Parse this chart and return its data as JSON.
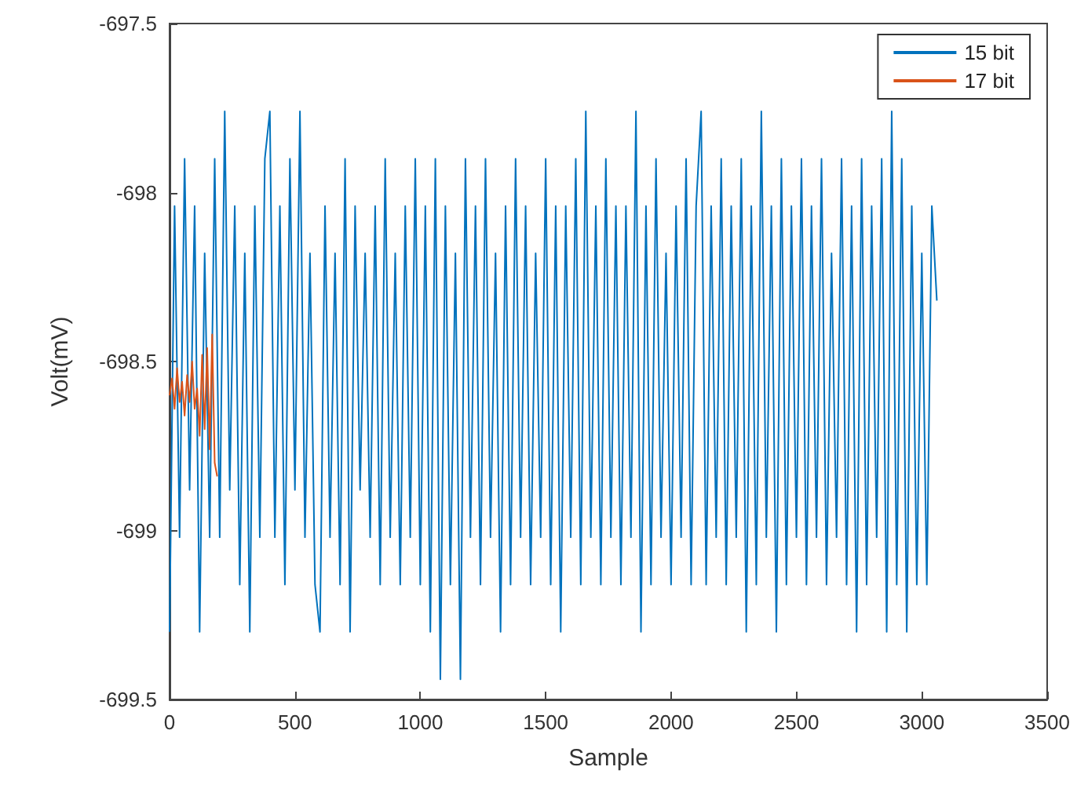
{
  "chart_data": {
    "type": "line",
    "xlabel": "Sample",
    "ylabel": "Volt(mV)",
    "xlim": [
      0,
      3500
    ],
    "xticks": [
      0,
      500,
      1000,
      1500,
      2000,
      2500,
      3000,
      3500
    ],
    "ylim": [
      -699.5,
      -697.5
    ],
    "yticks": [
      -699.5,
      -699,
      -698.5,
      -698,
      -697.5
    ],
    "grid": false,
    "legend": "top right",
    "marker": "none",
    "line_style": "solid",
    "series": [
      {
        "name": "15 bit",
        "color": "#0072bd",
        "x": [
          0,
          20,
          40,
          60,
          80,
          100,
          120,
          140,
          160,
          180,
          200,
          220,
          240,
          260,
          280,
          300,
          320,
          340,
          360,
          380,
          400,
          420,
          440,
          460,
          480,
          500,
          520,
          540,
          560,
          580,
          600,
          620,
          640,
          660,
          680,
          700,
          720,
          740,
          760,
          780,
          800,
          820,
          840,
          860,
          880,
          900,
          920,
          940,
          960,
          980,
          1000,
          1020,
          1040,
          1060,
          1080,
          1100,
          1120,
          1140,
          1160,
          1180,
          1200,
          1220,
          1240,
          1260,
          1280,
          1300,
          1320,
          1340,
          1360,
          1380,
          1400,
          1420,
          1440,
          1460,
          1480,
          1500,
          1520,
          1540,
          1560,
          1580,
          1600,
          1620,
          1640,
          1660,
          1680,
          1700,
          1720,
          1740,
          1760,
          1780,
          1800,
          1820,
          1840,
          1860,
          1880,
          1900,
          1920,
          1940,
          1960,
          1980,
          2000,
          2020,
          2040,
          2060,
          2080,
          2100,
          2120,
          2140,
          2160,
          2180,
          2200,
          2220,
          2240,
          2260,
          2280,
          2300,
          2320,
          2340,
          2360,
          2380,
          2400,
          2420,
          2440,
          2460,
          2480,
          2500,
          2520,
          2540,
          2560,
          2580,
          2600,
          2620,
          2640,
          2660,
          2680,
          2700,
          2720,
          2740,
          2760,
          2780,
          2800,
          2820,
          2840,
          2860,
          2880,
          2900,
          2920,
          2940,
          2960,
          2980,
          3000,
          3020,
          3040,
          3060
        ],
        "values": [
          -699.3,
          -698.04,
          -699.02,
          -697.9,
          -698.88,
          -698.04,
          -699.3,
          -698.18,
          -699.02,
          -697.9,
          -699.02,
          -697.76,
          -698.88,
          -698.04,
          -699.16,
          -698.18,
          -699.3,
          -698.04,
          -699.02,
          -697.9,
          -697.76,
          -699.02,
          -698.04,
          -699.16,
          -697.9,
          -698.88,
          -697.76,
          -699.02,
          -698.18,
          -699.16,
          -699.3,
          -698.04,
          -699.02,
          -698.18,
          -699.16,
          -697.9,
          -699.3,
          -698.04,
          -698.88,
          -698.18,
          -699.02,
          -698.04,
          -699.16,
          -697.9,
          -699.02,
          -698.18,
          -699.16,
          -698.04,
          -699.02,
          -697.9,
          -699.16,
          -698.04,
          -699.3,
          -697.9,
          -699.44,
          -698.04,
          -699.16,
          -698.18,
          -699.44,
          -697.9,
          -699.02,
          -698.04,
          -699.16,
          -697.9,
          -699.02,
          -698.18,
          -699.3,
          -698.04,
          -699.16,
          -697.9,
          -699.02,
          -698.04,
          -699.16,
          -698.18,
          -699.02,
          -697.9,
          -699.16,
          -698.04,
          -699.3,
          -698.04,
          -699.02,
          -697.9,
          -699.16,
          -697.76,
          -699.02,
          -698.04,
          -699.16,
          -697.9,
          -699.02,
          -698.04,
          -699.16,
          -698.04,
          -699.02,
          -697.76,
          -699.3,
          -698.04,
          -699.16,
          -697.9,
          -699.02,
          -698.18,
          -699.16,
          -698.04,
          -699.02,
          -697.9,
          -699.16,
          -698.04,
          -697.76,
          -699.16,
          -698.04,
          -699.02,
          -697.9,
          -699.16,
          -698.04,
          -699.02,
          -697.9,
          -699.3,
          -698.04,
          -699.16,
          -697.76,
          -699.02,
          -698.04,
          -699.3,
          -697.9,
          -699.16,
          -698.04,
          -699.02,
          -697.9,
          -699.16,
          -698.04,
          -699.02,
          -697.9,
          -699.16,
          -698.18,
          -699.02,
          -697.9,
          -699.16,
          -698.04,
          -699.3,
          -697.9,
          -699.16,
          -698.04,
          -699.02,
          -697.9,
          -699.3,
          -697.76,
          -699.16,
          -697.9,
          -699.3,
          -698.04,
          -699.16,
          -698.18,
          -699.16,
          -698.04,
          -698.32
        ]
      },
      {
        "name": "17 bit",
        "color": "#d95319",
        "x": [
          0,
          10,
          20,
          30,
          40,
          50,
          60,
          70,
          80,
          90,
          100,
          110,
          120,
          130,
          140,
          150,
          160,
          170,
          180,
          190
        ],
        "values": [
          -698.6,
          -698.55,
          -698.64,
          -698.52,
          -698.62,
          -698.56,
          -698.66,
          -698.54,
          -698.62,
          -698.5,
          -698.64,
          -698.58,
          -698.72,
          -698.48,
          -698.7,
          -698.46,
          -698.76,
          -698.42,
          -698.8,
          -698.84
        ]
      }
    ]
  }
}
